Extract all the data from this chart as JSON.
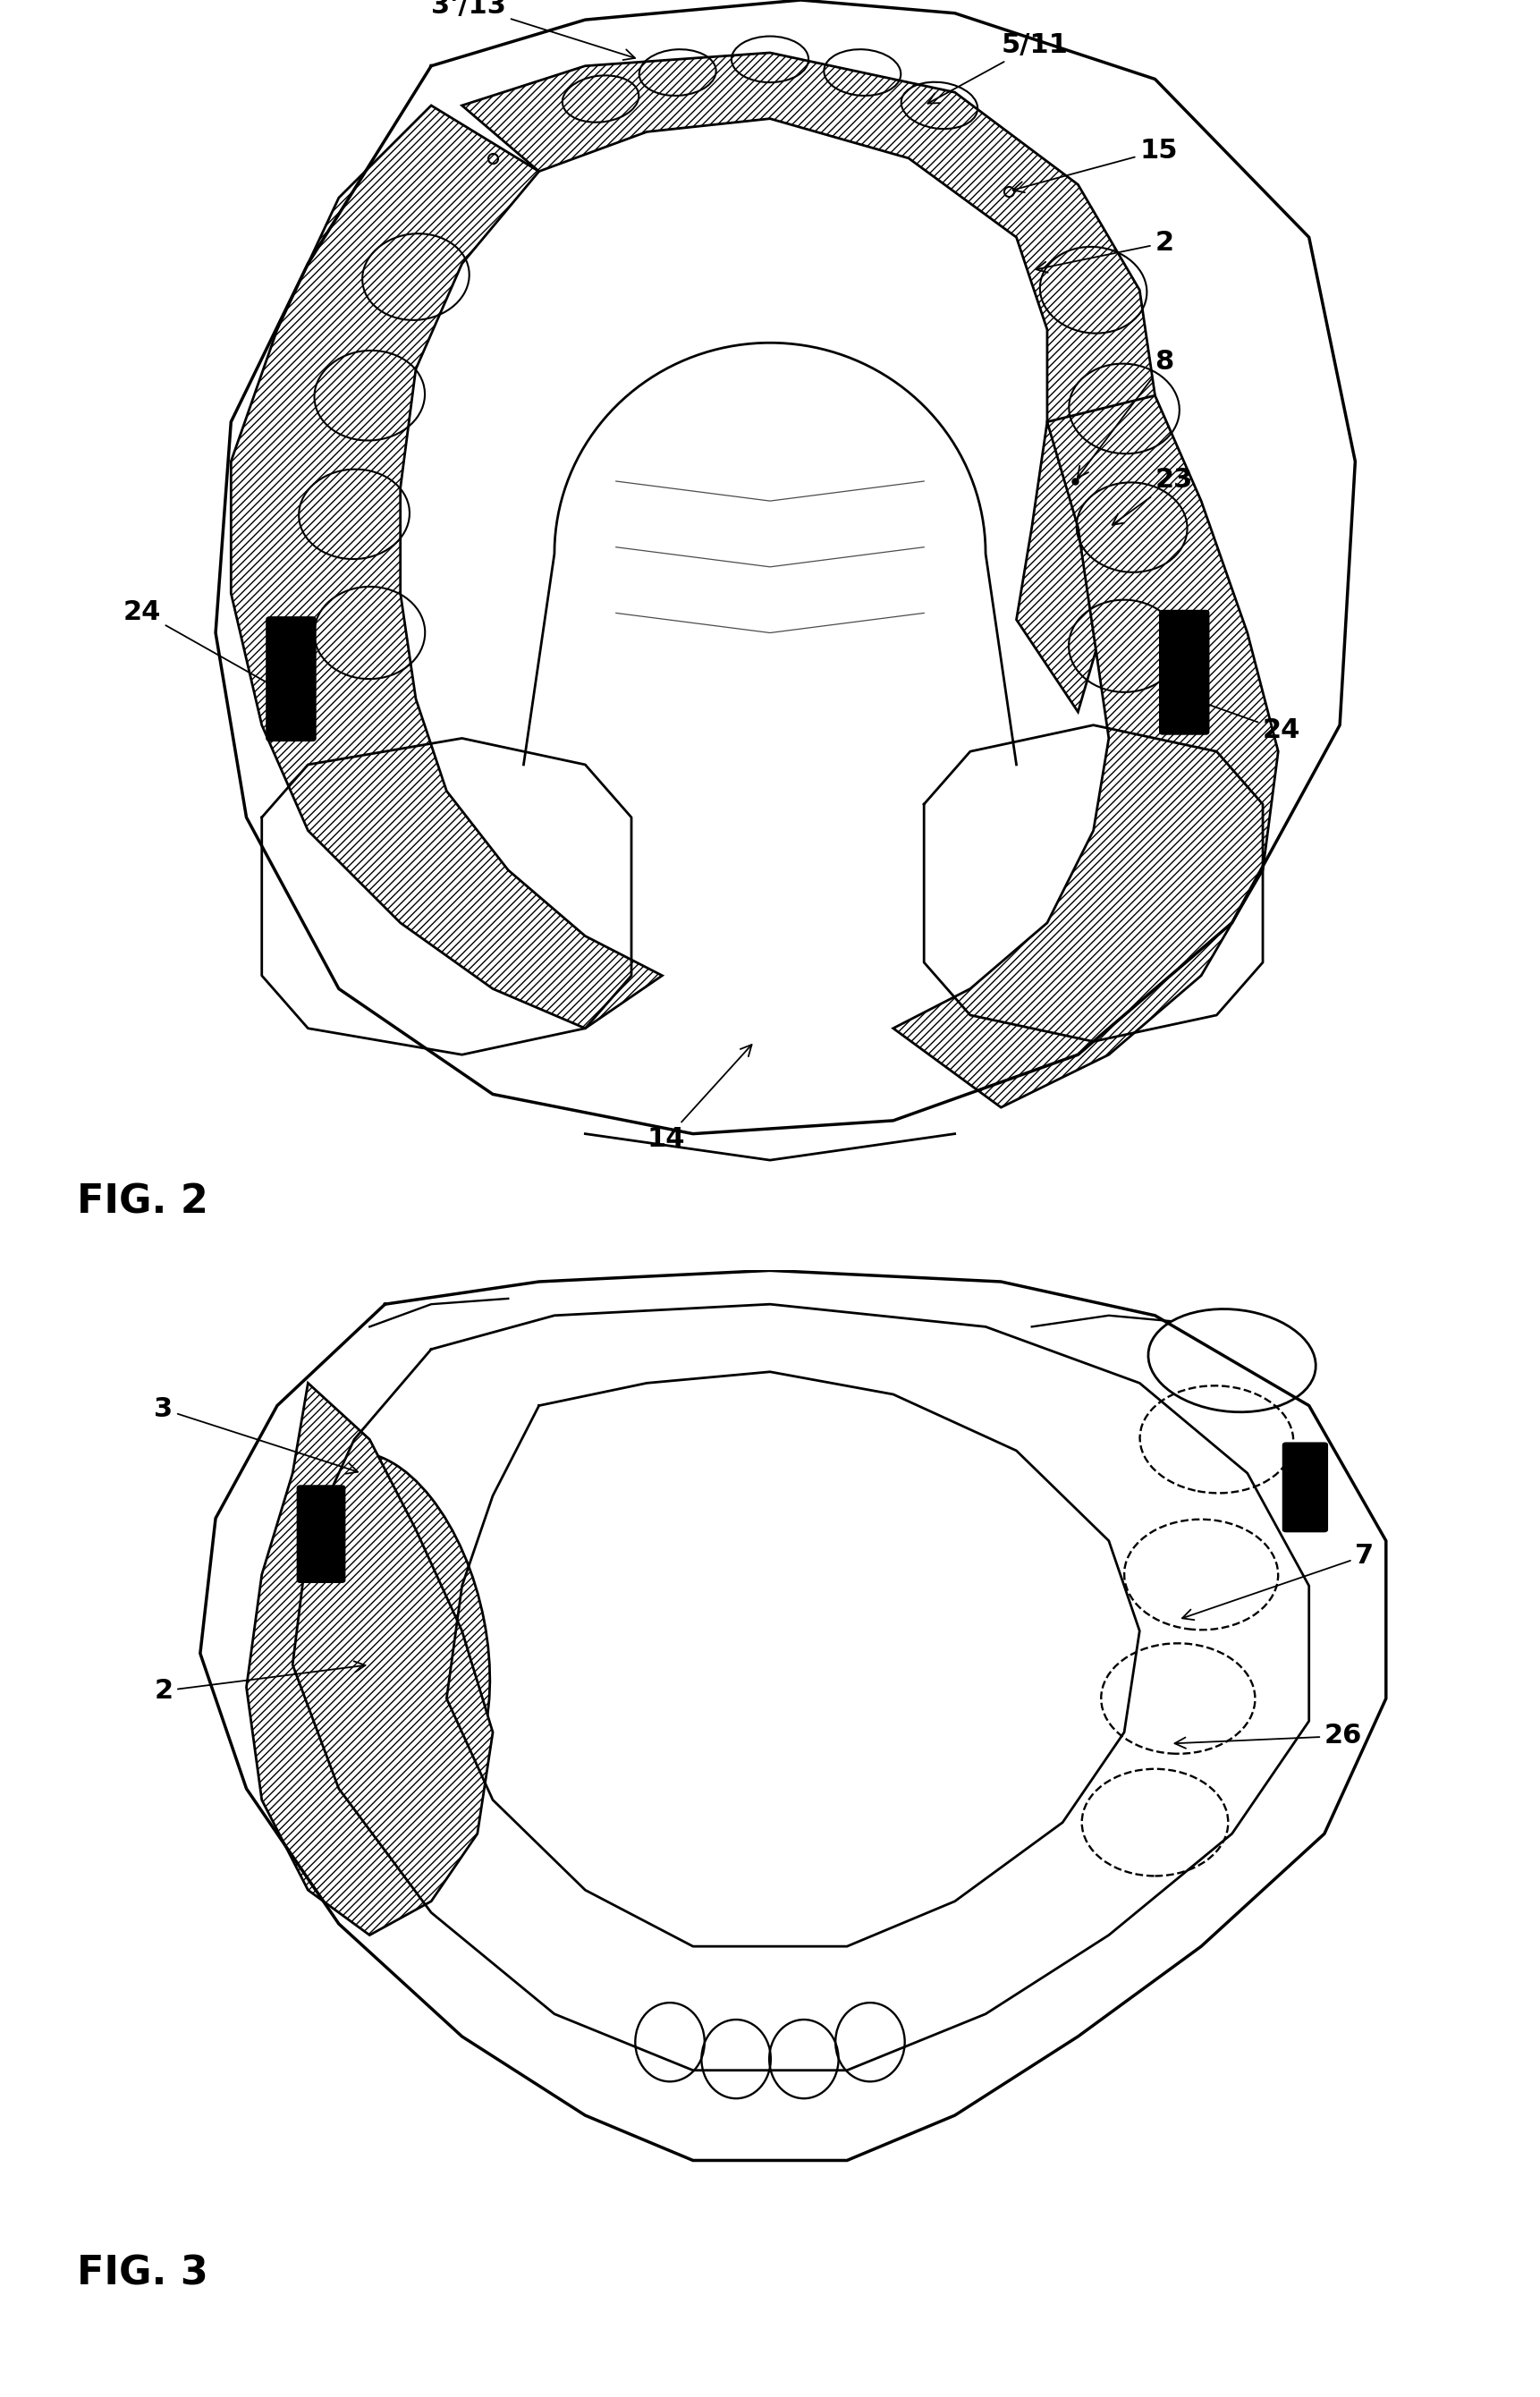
{
  "fig2_label": "FIG. 2",
  "fig3_label": "FIG. 3",
  "background_color": "#ffffff",
  "line_color": "#000000",
  "fontsize_label": 32,
  "fontsize_annot": 22,
  "lw": 2.0
}
